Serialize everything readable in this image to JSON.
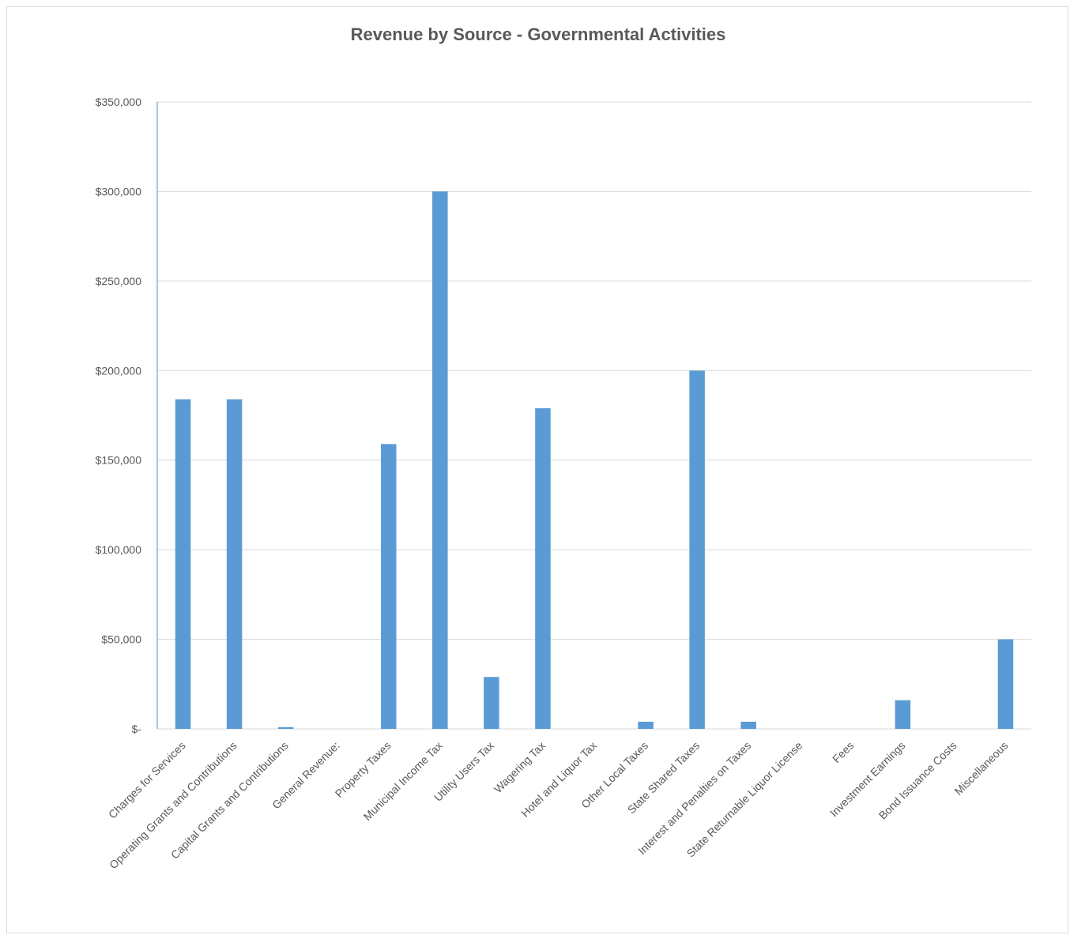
{
  "chart_data": {
    "type": "bar",
    "title": "Revenue by Source - Governmental Activities",
    "xlabel": "",
    "ylabel": "",
    "ylim": [
      0,
      350000
    ],
    "yticks": [
      0,
      50000,
      100000,
      150000,
      200000,
      250000,
      300000,
      350000
    ],
    "ytick_labels": [
      "$-",
      "$50,000",
      "$100,000",
      "$150,000",
      "$200,000",
      "$250,000",
      "$300,000",
      "$350,000"
    ],
    "grid": true,
    "bar_color": "#5b9bd5",
    "categories": [
      "Charges for Services",
      "Operating Grants and Contributions",
      "Capital Grants and Contributions",
      "General Revenue:",
      "Property Taxes",
      "Municipal Income Tax",
      "Utility Users Tax",
      "Wagering Tax",
      "Hotel and Liquor Tax",
      "Other Local Taxes",
      "State Shared Taxes",
      "Interest and Penalties on Taxes",
      "State Returnable Liquor License",
      "Fees",
      "Investment Earnings",
      "Bond Issuance Costs",
      "Miscellaneous"
    ],
    "values": [
      184000,
      184000,
      1000,
      0,
      159000,
      300000,
      29000,
      179000,
      0,
      4000,
      200000,
      4000,
      0,
      0,
      16000,
      0,
      50000
    ]
  }
}
